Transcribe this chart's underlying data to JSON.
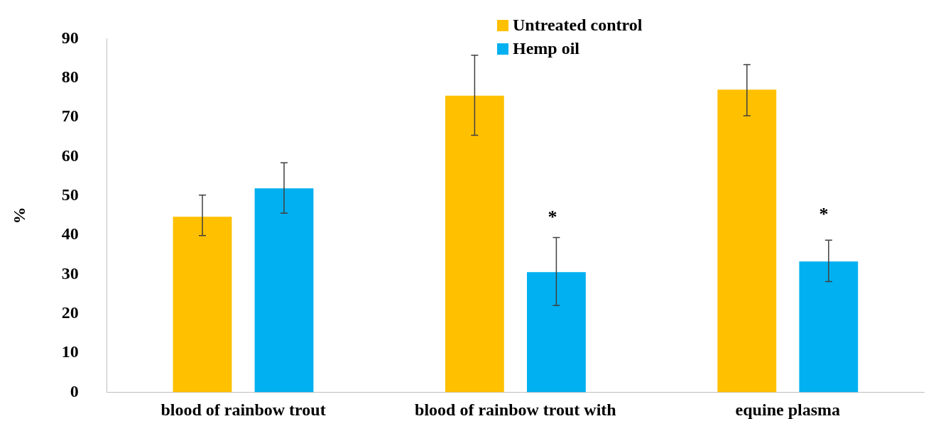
{
  "chart_data": {
    "type": "bar",
    "ylabel": "%",
    "categories": [
      "blood of rainbow trout",
      "blood of rainbow trout with",
      "equine plasma"
    ],
    "series": [
      {
        "name": "Untreated control",
        "color": "#ffc000",
        "values": [
          44.7,
          75.5,
          77.0
        ],
        "errors": [
          [
            39.9,
            50.2
          ],
          [
            65.4,
            85.8
          ],
          [
            70.4,
            83.4
          ]
        ]
      },
      {
        "name": "Hemp oil",
        "color": "#00b0f0",
        "values": [
          51.9,
          30.6,
          33.3
        ],
        "errors": [
          [
            45.6,
            58.4
          ],
          [
            22.1,
            39.4
          ],
          [
            28.2,
            38.7
          ]
        ]
      }
    ],
    "ylim": [
      0,
      90
    ],
    "yticks": [
      0,
      10,
      20,
      30,
      40,
      50,
      60,
      70,
      80,
      90
    ],
    "grid": false,
    "legend": "top",
    "annotations": [
      "*",
      "*"
    ]
  }
}
